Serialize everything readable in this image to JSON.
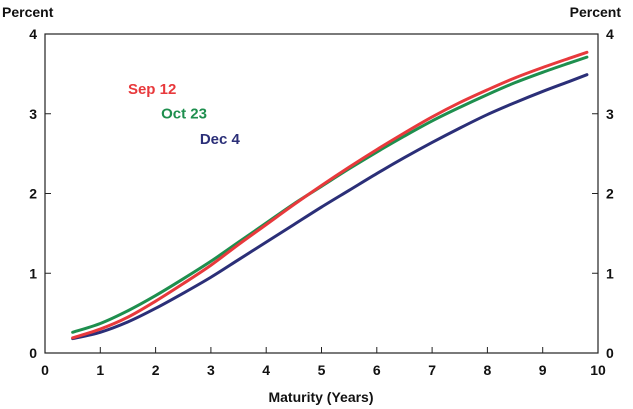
{
  "chart_data": {
    "type": "line",
    "title": "",
    "xlabel": "Maturity (Years)",
    "ylabel_left": "Percent",
    "ylabel_right": "Percent",
    "xlim": [
      0,
      10
    ],
    "ylim": [
      0,
      4
    ],
    "x_ticks": [
      0,
      1,
      2,
      3,
      4,
      5,
      6,
      7,
      8,
      9,
      10
    ],
    "y_ticks": [
      0,
      1,
      2,
      3,
      4
    ],
    "grid": false,
    "legend": "inline labels",
    "series": [
      {
        "name": "Sep 12",
        "color": "#e8393c",
        "x": [
          0.5,
          1,
          1.5,
          2,
          2.5,
          3,
          3.5,
          4,
          4.5,
          5,
          5.5,
          6,
          6.5,
          7,
          7.5,
          8,
          8.5,
          9,
          9.5,
          9.8
        ],
        "y": [
          0.19,
          0.3,
          0.45,
          0.65,
          0.87,
          1.1,
          1.36,
          1.61,
          1.86,
          2.1,
          2.33,
          2.55,
          2.76,
          2.96,
          3.14,
          3.3,
          3.45,
          3.58,
          3.7,
          3.77
        ]
      },
      {
        "name": "Oct 23",
        "color": "#1e8f4e",
        "x": [
          0.5,
          1,
          1.5,
          2,
          2.5,
          3,
          3.5,
          4,
          4.5,
          5,
          5.5,
          6,
          6.5,
          7,
          7.5,
          8,
          8.5,
          9,
          9.5,
          9.8
        ],
        "y": [
          0.26,
          0.37,
          0.53,
          0.72,
          0.93,
          1.15,
          1.39,
          1.63,
          1.87,
          2.09,
          2.31,
          2.52,
          2.72,
          2.91,
          3.08,
          3.24,
          3.39,
          3.52,
          3.64,
          3.71
        ]
      },
      {
        "name": "Dec 4",
        "color": "#2b2f78",
        "x": [
          0.5,
          1,
          1.5,
          2,
          2.5,
          3,
          3.5,
          4,
          4.5,
          5,
          5.5,
          6,
          6.5,
          7,
          7.5,
          8,
          8.5,
          9,
          9.5,
          9.8
        ],
        "y": [
          0.18,
          0.26,
          0.39,
          0.56,
          0.75,
          0.95,
          1.17,
          1.39,
          1.61,
          1.83,
          2.04,
          2.25,
          2.45,
          2.64,
          2.82,
          2.99,
          3.14,
          3.28,
          3.41,
          3.49
        ]
      }
    ]
  }
}
